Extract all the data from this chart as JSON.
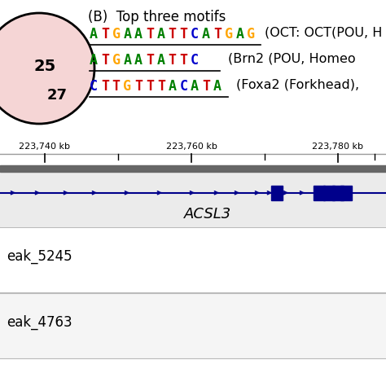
{
  "title": "(B)  Top three motifs",
  "motif1_seq": "ATGAATATTCATGAG",
  "motif1_label": "(OCT: OCT(POU, H",
  "motif2_seq": "ATGAATATTC",
  "motif2_label": "(Brn2 (POU, Homeo",
  "motif3_seq": "CTTGTTTACATA",
  "motif3_label": "(Foxa2 (Forkhead),",
  "circle_color": "#f5d5d5",
  "circle_text1": "25",
  "circle_text2": "27",
  "ruler_labels": [
    "223,740 kb",
    "223,760 kb",
    "223,780 kb"
  ],
  "gene_name": "ACSL3",
  "peak1_label": "eak_5245",
  "peak2_label": "eak_4763",
  "bg_color": "#ffffff",
  "track_bg": "#e0e0e0",
  "gene_color": "#00008B",
  "dna_colors": {
    "A": "#008000",
    "T": "#cc0000",
    "G": "#ffa500",
    "C": "#0000cc"
  }
}
